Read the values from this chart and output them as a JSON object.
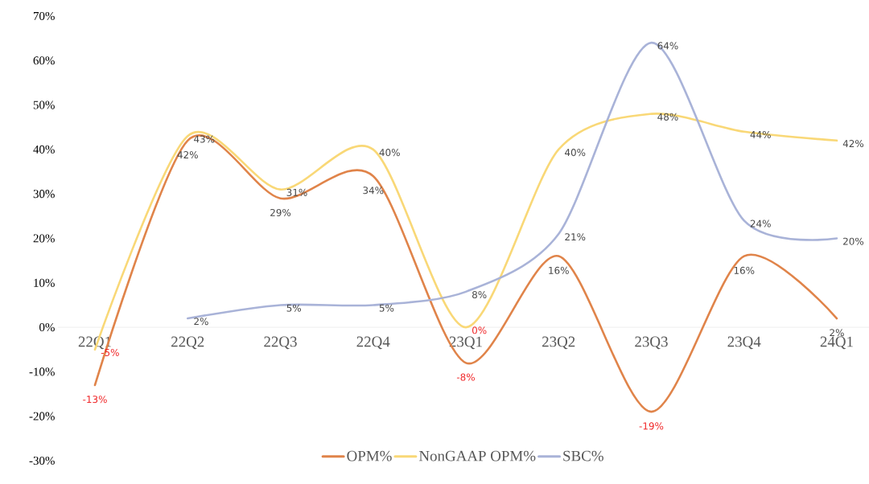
{
  "chart_data": {
    "type": "line",
    "categories": [
      "22Q1",
      "22Q2",
      "22Q3",
      "22Q4",
      "23Q1",
      "23Q2",
      "23Q3",
      "23Q4",
      "24Q1"
    ],
    "series": [
      {
        "name": "OPM%",
        "color": "#e0844a",
        "values": [
          -13,
          42,
          29,
          34,
          -8,
          16,
          -19,
          16,
          2
        ],
        "value_labels": [
          "-13%",
          "42%",
          "29%",
          "34%",
          "-8%",
          "16%",
          "-19%",
          "16%",
          "2%"
        ]
      },
      {
        "name": "NonGAAP OPM%",
        "color": "#f9d877",
        "values": [
          -5,
          43,
          31,
          40,
          0,
          40,
          48,
          44,
          42
        ],
        "value_labels": [
          "-5%",
          "43%",
          "31%",
          "40%",
          "0%",
          "40%",
          "48%",
          "44%",
          "42%"
        ]
      },
      {
        "name": "SBC%",
        "color": "#a9b3d8",
        "values": [
          null,
          2,
          5,
          5,
          8,
          21,
          64,
          24,
          20
        ],
        "value_labels": [
          null,
          "2%",
          "5%",
          "5%",
          "8%",
          "21%",
          "64%",
          "24%",
          "20%"
        ]
      }
    ],
    "ylim": [
      -30,
      70
    ],
    "yticks": [
      {
        "value": -30,
        "label": "-30%"
      },
      {
        "value": -20,
        "label": "-20%"
      },
      {
        "value": -10,
        "label": "-10%"
      },
      {
        "value": 0,
        "label": "0%"
      },
      {
        "value": 10,
        "label": "10%"
      },
      {
        "value": 20,
        "label": "20%"
      },
      {
        "value": 30,
        "label": "30%"
      },
      {
        "value": 40,
        "label": "40%"
      },
      {
        "value": 50,
        "label": "50%"
      },
      {
        "value": 60,
        "label": "60%"
      },
      {
        "value": 70,
        "label": "70%"
      }
    ],
    "grid": false,
    "legend": "bottom",
    "marker": "none",
    "line_style": "solid"
  }
}
